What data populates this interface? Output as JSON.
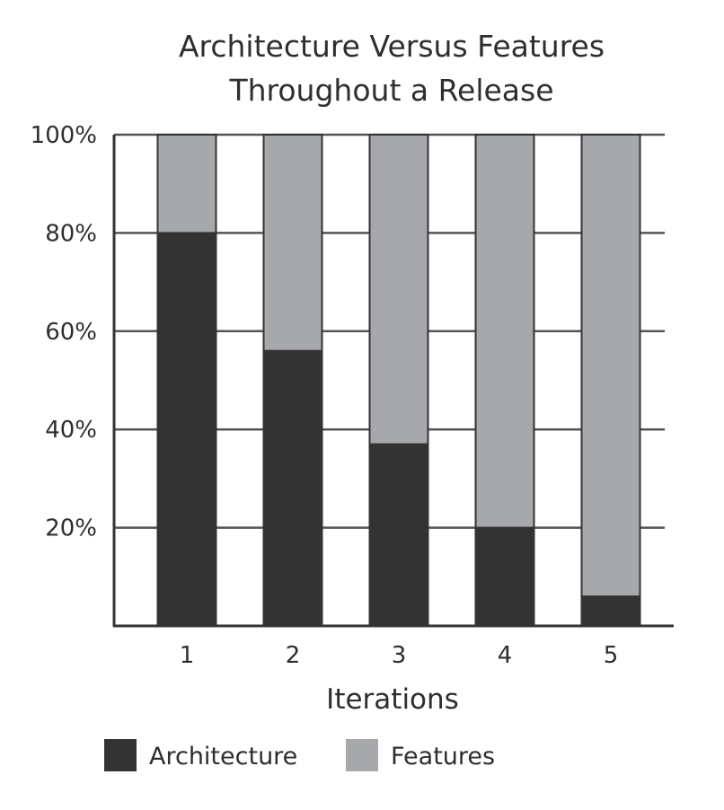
{
  "chart_data": {
    "type": "bar",
    "stacked": true,
    "title_lines": [
      "Architecture Versus Features",
      "Throughout a Release"
    ],
    "xlabel": "Iterations",
    "ylabel": "",
    "categories": [
      "1",
      "2",
      "3",
      "4",
      "5"
    ],
    "series": [
      {
        "name": "Architecture",
        "values": [
          80,
          56,
          37,
          20,
          6
        ],
        "color": "#333333"
      },
      {
        "name": "Features",
        "values": [
          20,
          44,
          63,
          80,
          94
        ],
        "color": "#a6a8ab"
      }
    ],
    "ylim": [
      0,
      100
    ],
    "y_ticks": [
      20,
      40,
      60,
      80,
      100
    ],
    "y_tick_labels": [
      "20%",
      "40%",
      "60%",
      "80%",
      "100%"
    ],
    "grid": true,
    "legend_position": "bottom-left",
    "colors": {
      "axis": "#333333",
      "grid": "#555555",
      "text": "#2e2e2e"
    }
  }
}
